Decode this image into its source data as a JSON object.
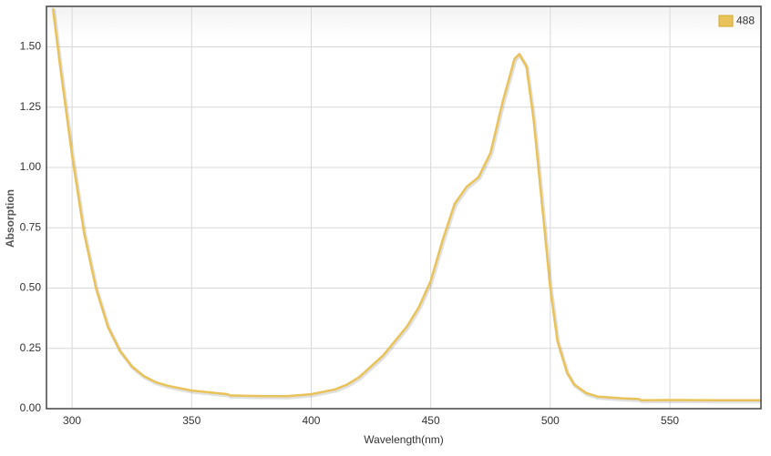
{
  "chart_data": {
    "type": "line",
    "xlabel": "Wavelength(nm)",
    "ylabel": "Absorption",
    "x": [
      292,
      295,
      300,
      305,
      310,
      315,
      320,
      325,
      330,
      335,
      340,
      350,
      360,
      365,
      366,
      380,
      390,
      400,
      410,
      415,
      420,
      430,
      440,
      445,
      450,
      455,
      460,
      465,
      470,
      475,
      480,
      485,
      487,
      490,
      493,
      497,
      500,
      503,
      507,
      510,
      515,
      520,
      530,
      537,
      538,
      550,
      570,
      588
    ],
    "series": [
      {
        "name": "488",
        "color": "#e9c35a",
        "values": [
          1.66,
          1.42,
          1.05,
          0.73,
          0.5,
          0.34,
          0.24,
          0.175,
          0.135,
          0.11,
          0.095,
          0.075,
          0.065,
          0.06,
          0.055,
          0.052,
          0.052,
          0.06,
          0.08,
          0.1,
          0.13,
          0.22,
          0.34,
          0.42,
          0.53,
          0.7,
          0.85,
          0.92,
          0.96,
          1.06,
          1.27,
          1.45,
          1.47,
          1.42,
          1.2,
          0.8,
          0.5,
          0.28,
          0.15,
          0.1,
          0.065,
          0.05,
          0.043,
          0.04,
          0.035,
          0.036,
          0.035,
          0.035
        ]
      }
    ],
    "xlim": [
      289.3,
      588.1
    ],
    "xticks": [
      300,
      350,
      400,
      450,
      500,
      550
    ],
    "ylim": [
      0,
      1.668
    ],
    "yticks": [
      {
        "value": 0,
        "label": "0.00"
      },
      0.25,
      {
        "value": 0.5,
        "label": "0.50"
      },
      0.75,
      {
        "value": 1,
        "label": "1.00"
      },
      1.25,
      {
        "value": 1.5,
        "label": "1.50"
      }
    ],
    "grid": true,
    "legend": "top-right"
  }
}
